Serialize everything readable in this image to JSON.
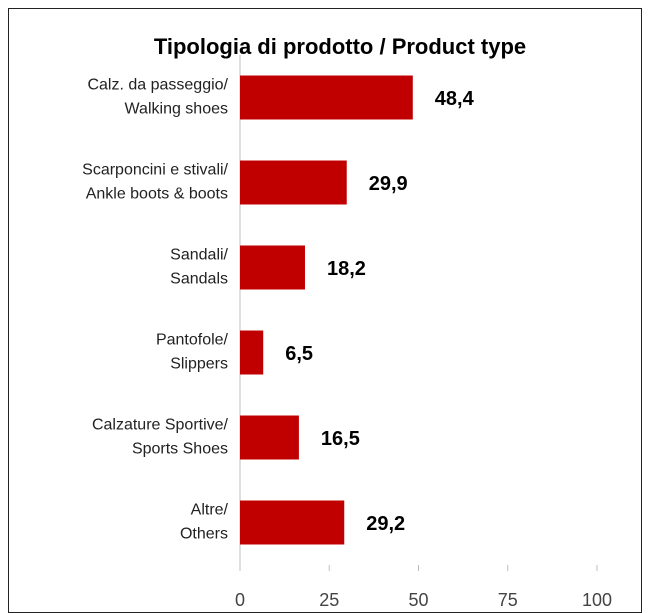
{
  "chart_data": {
    "type": "barh",
    "title": "Tipologia di prodotto / Product type",
    "categories": [
      [
        "Calz. da passeggio/",
        "Walking shoes"
      ],
      [
        "Scarponcini e stivali/",
        "Ankle boots & boots"
      ],
      [
        "Sandali/",
        "Sandals"
      ],
      [
        "Pantofole/",
        "Slippers"
      ],
      [
        "Calzature Sportive/",
        "Sports Shoes"
      ],
      [
        "Altre/",
        "Others"
      ]
    ],
    "values": [
      48.4,
      29.9,
      18.2,
      6.5,
      16.5,
      29.2
    ],
    "value_labels": [
      "48,4",
      "29,9",
      "18,2",
      "6,5",
      "16,5",
      "29,2"
    ],
    "color": "#c00000",
    "xlim": [
      0,
      100
    ],
    "xticks": [
      0,
      25,
      50,
      75,
      100
    ],
    "grid": false
  }
}
